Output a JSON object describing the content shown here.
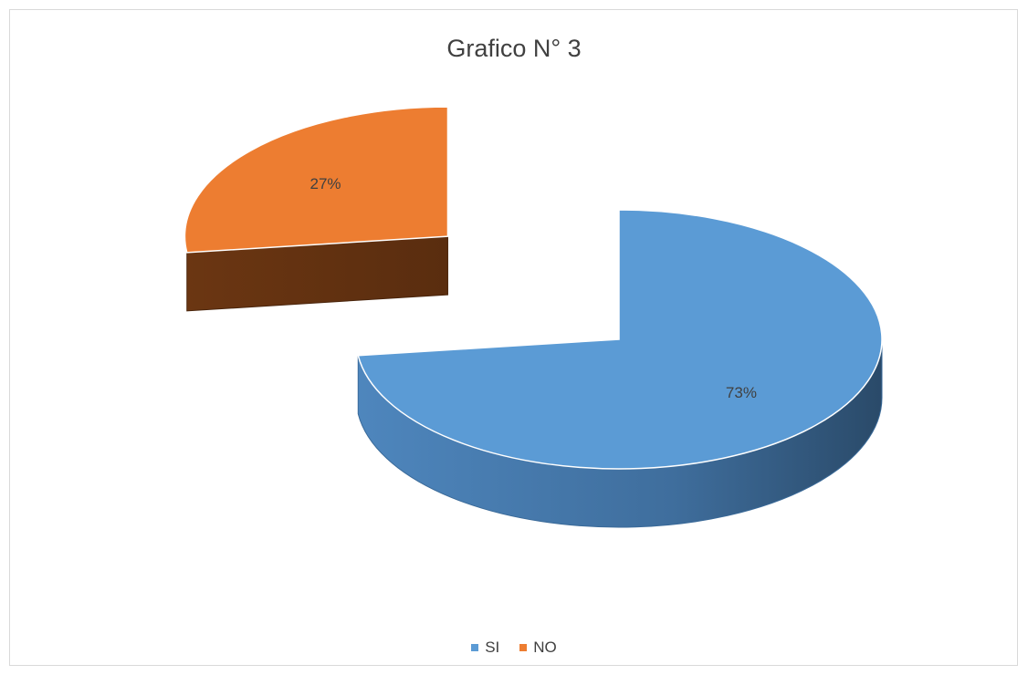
{
  "chart_data": {
    "type": "pie",
    "title": "Grafico N° 3",
    "categories": [
      "SI",
      "NO"
    ],
    "values": [
      73,
      27
    ],
    "data_labels": [
      "73%",
      "27%"
    ],
    "colors": [
      "#5b9bd5",
      "#ed7d31"
    ],
    "three_d": true,
    "exploded_slice": "NO",
    "legend_position": "bottom"
  }
}
